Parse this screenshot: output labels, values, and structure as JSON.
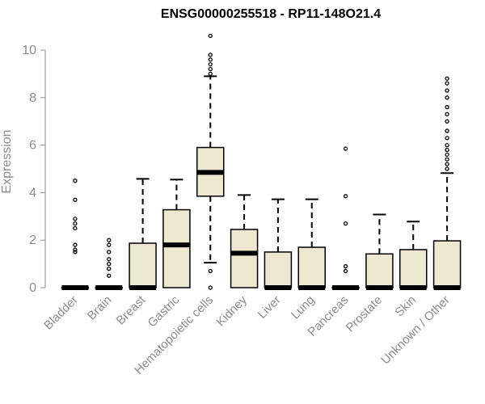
{
  "chart_data": {
    "type": "box",
    "title": "ENSG00000255518 - RP11-148O21.4",
    "xlabel": "",
    "ylabel": "Expression",
    "ylim": [
      0,
      10.6
    ],
    "yticks": [
      0,
      2,
      4,
      6,
      8,
      10
    ],
    "box_color": "#efe8d0",
    "categories": [
      "Bladder",
      "Brain",
      "Breast",
      "Gastric",
      "Hematopoietic cells",
      "Kidney",
      "Liver",
      "Lung",
      "Pancreas",
      "Prostate",
      "Skin",
      "Unknown / Other"
    ],
    "series": [
      {
        "name": "Bladder",
        "q1": 0,
        "median": 0,
        "q3": 0,
        "whisker_low": 0,
        "whisker_high": 0,
        "outliers": [
          1.5,
          1.6,
          1.8,
          2.5,
          2.7,
          2.9,
          3.7,
          4.5
        ]
      },
      {
        "name": "Brain",
        "q1": 0,
        "median": 0,
        "q3": 0,
        "whisker_low": 0,
        "whisker_high": 0,
        "outliers": [
          0.5,
          0.8,
          1.0,
          1.2,
          1.5,
          1.8,
          2.0
        ]
      },
      {
        "name": "Breast",
        "q1": 0,
        "median": 0,
        "q3": 1.87,
        "whisker_low": 0,
        "whisker_high": 4.58,
        "outliers": []
      },
      {
        "name": "Gastric",
        "q1": 0,
        "median": 1.8,
        "q3": 3.28,
        "whisker_low": 0,
        "whisker_high": 4.55,
        "outliers": []
      },
      {
        "name": "Hematopoietic cells",
        "q1": 3.85,
        "median": 4.85,
        "q3": 5.9,
        "whisker_low": 1.05,
        "whisker_high": 8.9,
        "outliers": [
          0,
          0.7,
          9.0,
          9.2,
          9.4,
          9.6,
          9.8,
          10.6
        ]
      },
      {
        "name": "Kidney",
        "q1": 0,
        "median": 1.45,
        "q3": 2.45,
        "whisker_low": 0,
        "whisker_high": 3.9,
        "outliers": []
      },
      {
        "name": "Liver",
        "q1": 0,
        "median": 0,
        "q3": 1.5,
        "whisker_low": 0,
        "whisker_high": 3.72,
        "outliers": []
      },
      {
        "name": "Lung",
        "q1": 0,
        "median": 0,
        "q3": 1.7,
        "whisker_low": 0,
        "whisker_high": 3.72,
        "outliers": []
      },
      {
        "name": "Pancreas",
        "q1": 0,
        "median": 0,
        "q3": 0,
        "whisker_low": 0,
        "whisker_high": 0,
        "outliers": [
          0.7,
          0.9,
          2.7,
          3.85,
          5.85
        ]
      },
      {
        "name": "Prostate",
        "q1": 0,
        "median": 0,
        "q3": 1.42,
        "whisker_low": 0,
        "whisker_high": 3.08,
        "outliers": []
      },
      {
        "name": "Skin",
        "q1": 0,
        "median": 0,
        "q3": 1.6,
        "whisker_low": 0,
        "whisker_high": 2.78,
        "outliers": []
      },
      {
        "name": "Unknown / Other",
        "q1": 0,
        "median": 0,
        "q3": 1.97,
        "whisker_low": 0,
        "whisker_high": 4.82,
        "outliers": [
          5.0,
          5.2,
          5.4,
          5.6,
          5.8,
          6.0,
          6.3,
          6.6,
          7.0,
          7.3,
          7.6,
          8.0,
          8.3,
          8.6,
          8.8
        ]
      }
    ]
  }
}
